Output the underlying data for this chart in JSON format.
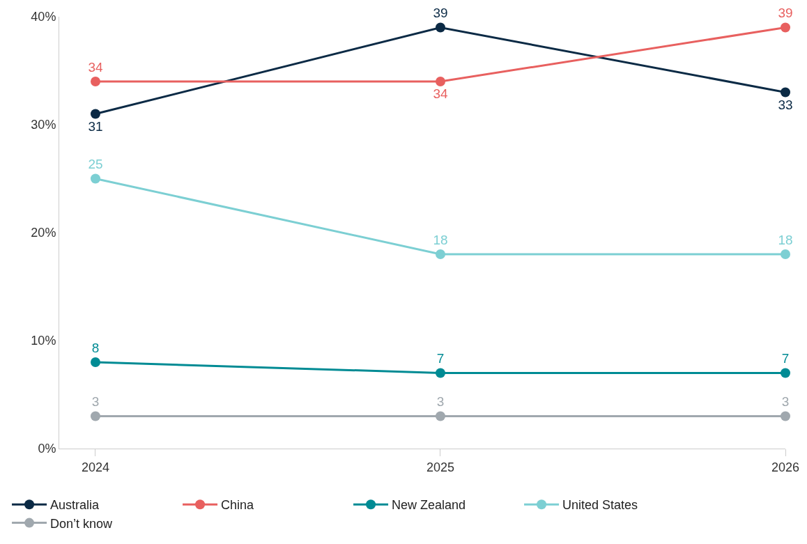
{
  "chart_data": {
    "type": "line",
    "categories": [
      "2024",
      "2025",
      "2026"
    ],
    "series": [
      {
        "name": "Australia",
        "color": "#0b2a45",
        "values": [
          31,
          39,
          33
        ]
      },
      {
        "name": "China",
        "color": "#e8605f",
        "values": [
          34,
          34,
          39
        ]
      },
      {
        "name": "New Zealand",
        "color": "#008b94",
        "values": [
          8,
          7,
          7
        ]
      },
      {
        "name": "United States",
        "color": "#7ccfd3",
        "values": [
          25,
          18,
          18
        ]
      },
      {
        "name": "Don’t know",
        "color": "#a0a8ae",
        "values": [
          3,
          3,
          3
        ]
      }
    ],
    "ylim": [
      0,
      40
    ],
    "yticks": [
      {
        "value": 0,
        "label": "0%"
      },
      {
        "value": 10,
        "label": "10%"
      },
      {
        "value": 20,
        "label": "20%"
      },
      {
        "value": 30,
        "label": "30%"
      },
      {
        "value": 40,
        "label": "40%"
      }
    ],
    "data_labels": true,
    "legend": "bottom",
    "marker": "circle",
    "line_style": "solid"
  }
}
